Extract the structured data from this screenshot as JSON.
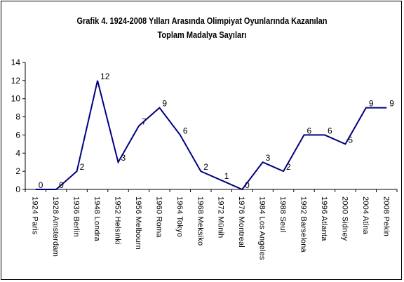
{
  "chart_data": {
    "type": "line",
    "title_line1": "Grafik 4. 1924-2008 Yılları Arasında Olimpiyat Oyunlarında Kazanılan",
    "title_line2": "Toplam Madalya Sayıları",
    "categories": [
      "1924 Paris",
      "1928 Amsterdam",
      "1936 Berlin",
      "1948 Londra",
      "1952 Helsinki",
      "1956 Melbourn",
      "1960 Roma",
      "1964 Tokyo",
      "1968 Meksiko",
      "1972 Münih",
      "1976 Montreal",
      "1984 Los Angeles",
      "1988 Seul",
      "1992 Barselona",
      "1996 Atlanta",
      "2000 Sidney",
      "2004 Atina",
      "2008 Pekin"
    ],
    "values": [
      0,
      0,
      2,
      12,
      3,
      7,
      9,
      6,
      2,
      1,
      0,
      3,
      2,
      6,
      6,
      5,
      9,
      9
    ],
    "data_labels": [
      "0",
      "0",
      "2",
      "12",
      "3",
      "7",
      "9",
      "6",
      "2",
      "1",
      "0",
      "3",
      "2",
      "6",
      "6",
      "5",
      "9",
      "9"
    ],
    "yticks": [
      "0",
      "2",
      "4",
      "6",
      "8",
      "10",
      "12",
      "14"
    ],
    "ylim": [
      0,
      14
    ],
    "grid": false,
    "legend": "none",
    "line_color": "#000080"
  }
}
